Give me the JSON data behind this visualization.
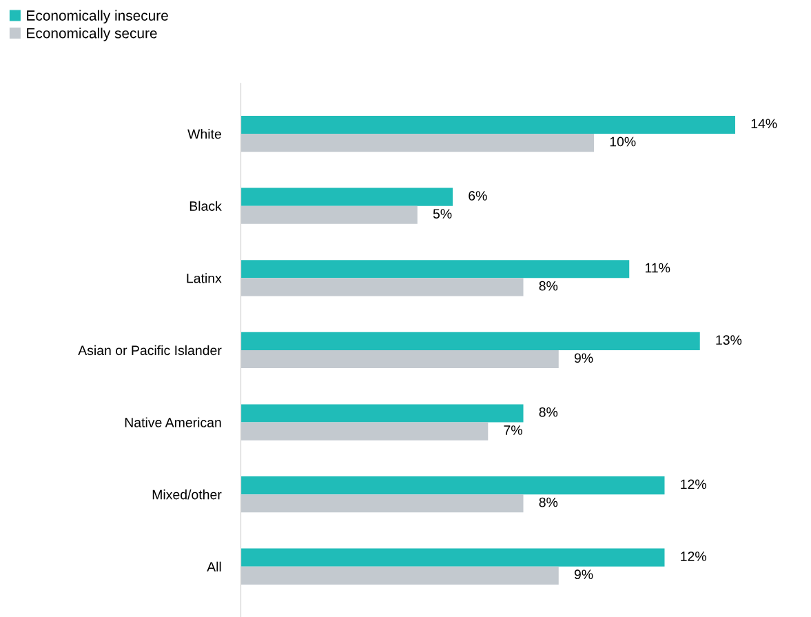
{
  "chart_data": {
    "type": "bar",
    "orientation": "horizontal",
    "categories": [
      "White",
      "Black",
      "Latinx",
      "Asian or Pacific Islander",
      "Native American",
      "Mixed/other",
      "All"
    ],
    "series": [
      {
        "name": "Economically insecure",
        "color": "#20bcb8",
        "values": [
          14,
          6,
          11,
          13,
          8,
          12,
          12
        ],
        "value_labels": [
          "14%",
          "6%",
          "11%",
          "13%",
          "8%",
          "12%",
          "12%"
        ]
      },
      {
        "name": "Economically secure",
        "color": "#c3c9cf",
        "values": [
          10,
          5,
          8,
          9,
          7,
          8,
          9
        ],
        "value_labels": [
          "10%",
          "5%",
          "8%",
          "9%",
          "7%",
          "8%",
          "9%"
        ]
      }
    ],
    "tick_labels": "y",
    "legend": "top left"
  }
}
